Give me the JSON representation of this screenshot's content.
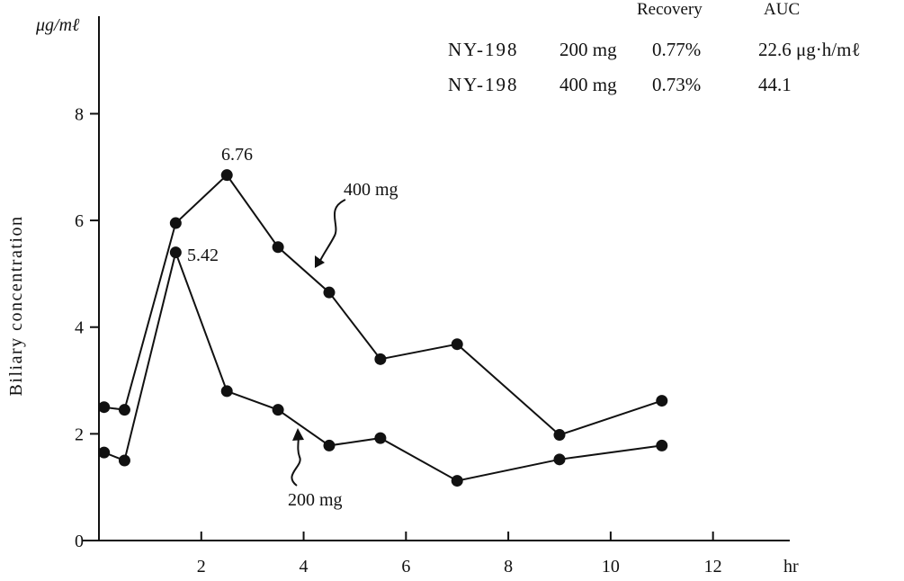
{
  "chart_data": {
    "type": "line",
    "ylabel": "Biliary concentration",
    "yunit": "μg/mℓ",
    "xunit": "hr",
    "xlim": [
      0,
      13.5
    ],
    "ylim": [
      0,
      8.8
    ],
    "xticks": [
      2,
      4,
      6,
      8,
      10,
      12
    ],
    "yticks": [
      0,
      2,
      4,
      6,
      8
    ],
    "grid": false,
    "series": [
      {
        "name": "400 mg",
        "x": [
          0.1,
          0.5,
          1.5,
          2.5,
          3.5,
          4.5,
          5.5,
          7.0,
          9.0,
          11.0
        ],
        "y": [
          2.5,
          2.45,
          5.95,
          6.85,
          5.5,
          4.65,
          3.4,
          3.68,
          1.98,
          2.62
        ]
      },
      {
        "name": "200 mg",
        "x": [
          0.1,
          0.5,
          1.5,
          2.5,
          3.5,
          4.5,
          5.5,
          7.0,
          9.0,
          11.0
        ],
        "y": [
          1.65,
          1.5,
          5.4,
          2.8,
          2.45,
          1.78,
          1.92,
          1.12,
          1.52,
          1.78
        ]
      }
    ],
    "annotations": {
      "peak_400": "6.76",
      "peak_200": "5.42",
      "label_400": "400 mg",
      "label_200": "200 mg"
    },
    "table": {
      "headers": [
        "Recovery",
        "AUC"
      ],
      "rows": [
        {
          "drug": "NY-198",
          "dose": "200 mg",
          "recovery": "0.77%",
          "auc": "22.6 μg·h/mℓ"
        },
        {
          "drug": "NY-198",
          "dose": "400 mg",
          "recovery": "0.73%",
          "auc": "44.1"
        }
      ]
    }
  }
}
